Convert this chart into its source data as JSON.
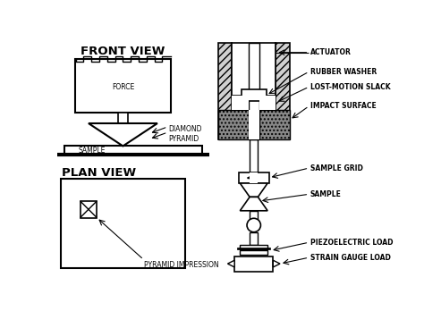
{
  "bg_color": "#ffffff",
  "line_color": "#000000",
  "labels": {
    "front_view": "FRONT VIEW",
    "plan_view": "PLAN VIEW",
    "force": "FORCE",
    "sample_fv": "SAMPLE",
    "diamond_pyramid": "DIAMOND\nPYRAMID",
    "actuator": "ACTUATOR",
    "rubber_washer": "RUBBER WASHER",
    "lost_motion": "LOST-MOTION SLACK",
    "impact_surface": "IMPACT SURFACE",
    "sample_grid": "SAMPLE GRID",
    "sample_rhs": "SAMPLE",
    "piezoelectric": "PIEZOELECTRIC LOAD",
    "strain_gauge": "STRAIN GAUGE LOAD",
    "pyramid_impression": "PYRAMID IMPRESSION"
  },
  "label_fontsize": 5.5,
  "title_fontsize": 9.5
}
